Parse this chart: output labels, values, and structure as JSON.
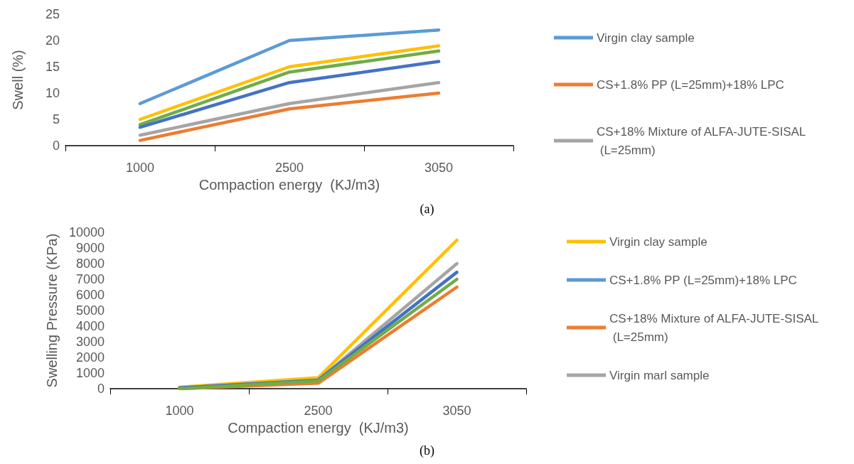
{
  "chart_data": [
    {
      "type": "line",
      "xlabel": "Compaction energy  (KJ/m3)",
      "ylabel": "Swell (%)",
      "categories": [
        "1000",
        "2500",
        "3050"
      ],
      "ylim": [
        0,
        25
      ],
      "yticks": [
        0,
        5,
        10,
        15,
        20,
        25
      ],
      "grid": false,
      "legend": "right",
      "marker": "none",
      "line_style": "solid",
      "annotations": [
        "(a)"
      ],
      "series": [
        {
          "name": "Virgin clay sample",
          "color": "#5b9bd5",
          "values": [
            8,
            20,
            22
          ]
        },
        {
          "color": "#ffc000",
          "values": [
            5,
            15,
            19
          ]
        },
        {
          "color": "#70ad47",
          "values": [
            4,
            14,
            18
          ]
        },
        {
          "color": "#4472c4",
          "values": [
            3.5,
            12,
            16
          ]
        },
        {
          "name": "CS+1.8% PP (L=25mm)+18% LPC",
          "color": "#ed7d31",
          "values": [
            1,
            7,
            10
          ]
        },
        {
          "name": "CS+18% Mixture of ALFA-JUTE-SISAL (L=25mm)",
          "color": "#a5a5a5",
          "values": [
            2,
            8,
            12
          ]
        }
      ]
    },
    {
      "type": "line",
      "xlabel": "Compaction energy  (KJ/m3)",
      "ylabel": "Swelling Pressure (KPa)",
      "categories": [
        "1000",
        "2500",
        "3050"
      ],
      "ylim": [
        0,
        10000
      ],
      "yticks": [
        0,
        1000,
        2000,
        3000,
        4000,
        5000,
        6000,
        7000,
        8000,
        9000,
        10000
      ],
      "grid": false,
      "legend": "right",
      "marker": "none",
      "line_style": "solid",
      "annotations": [
        "(b)"
      ],
      "series": [
        {
          "name": "Virgin clay sample",
          "color": "#ffc000",
          "values": [
            100,
            700,
            9500
          ]
        },
        {
          "name": "CS+1.8% PP (L=25mm)+18% LPC",
          "color": "#5b9bd5",
          "values": [
            null,
            null,
            null
          ]
        },
        {
          "name": "CS+18% Mixture of ALFA-JUTE-SISAL (L=25mm)",
          "color": "#ed7d31",
          "values": [
            0,
            350,
            6500
          ]
        },
        {
          "name": "Virgin marl sample",
          "color": "#a5a5a5",
          "values": [
            50,
            550,
            8000
          ]
        },
        {
          "color": "#4472c4",
          "values": [
            50,
            550,
            7450
          ]
        },
        {
          "color": "#70ad47",
          "values": [
            0,
            500,
            7000
          ]
        }
      ]
    }
  ]
}
